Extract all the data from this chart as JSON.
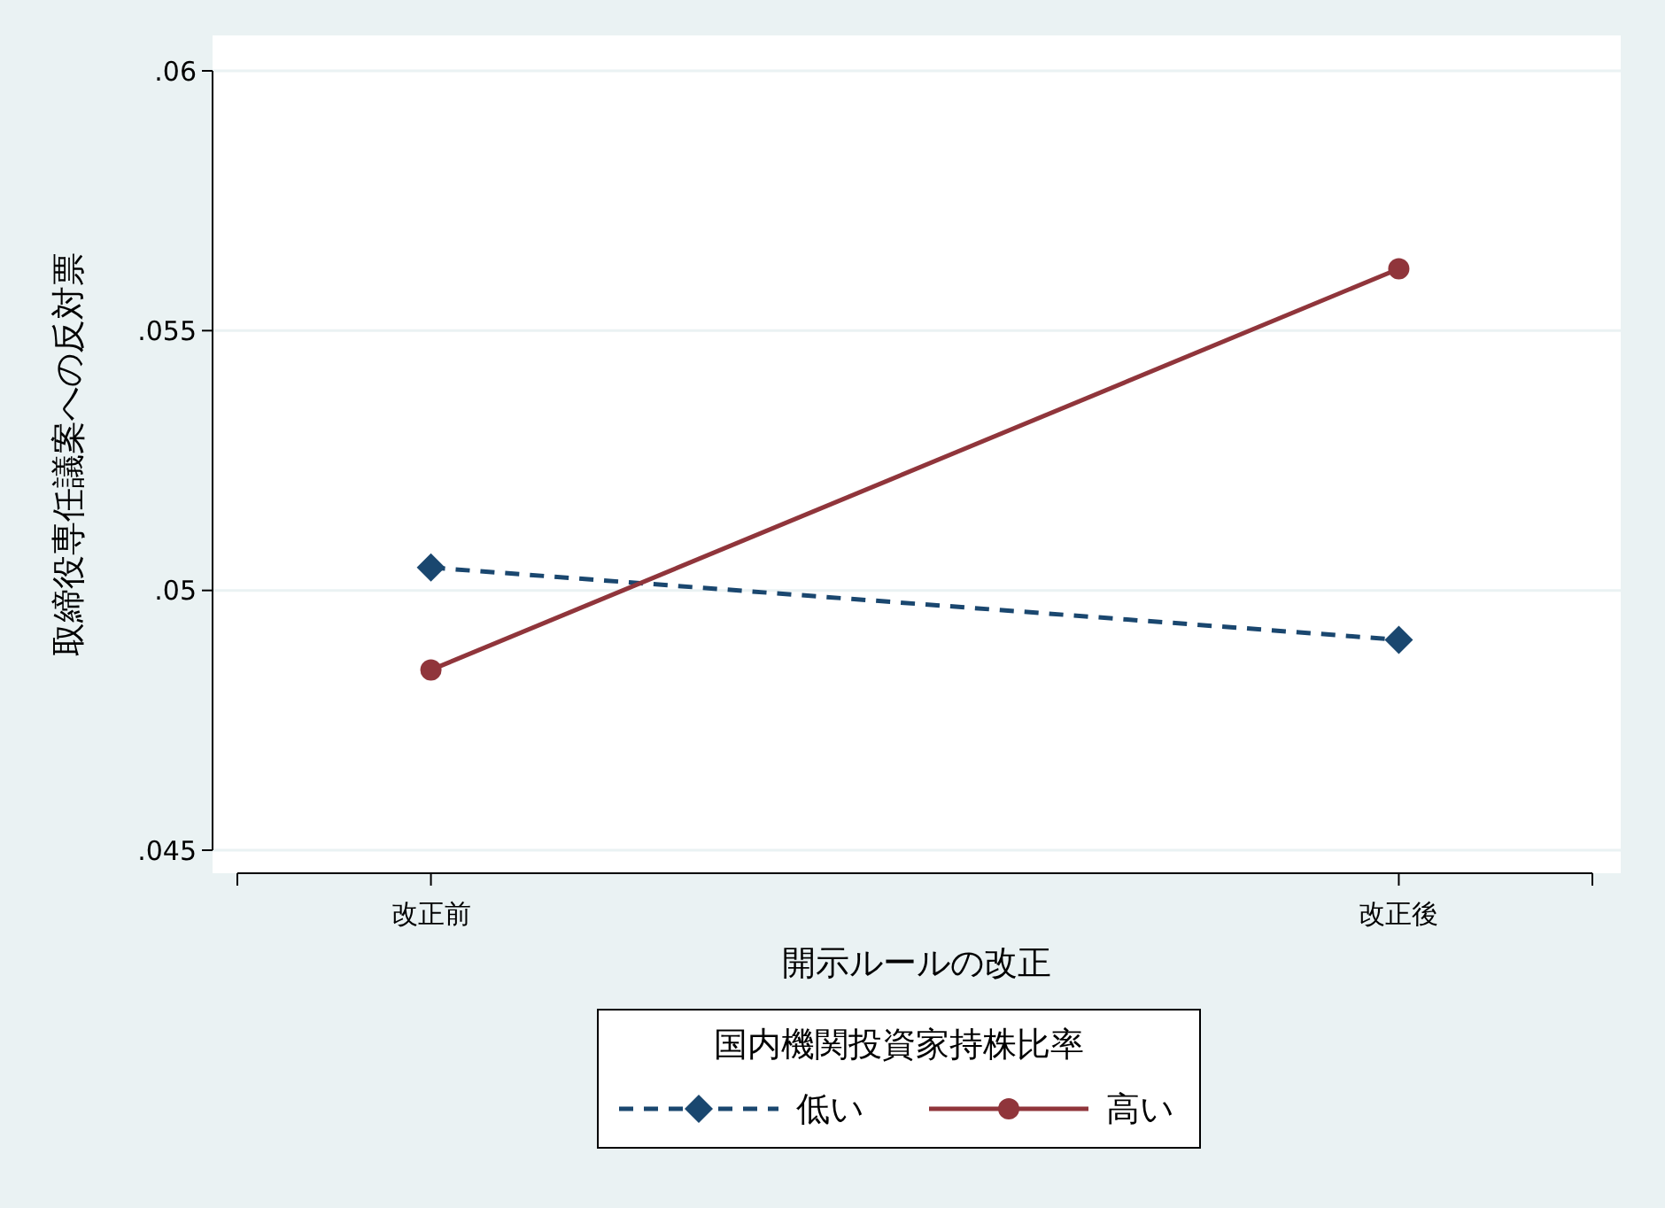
{
  "chart_data": {
    "type": "line",
    "xlabel": "開示ルールの改正",
    "ylabel": "取締役専任議案への反対票",
    "legend_title": "国内機関投資家持株比率",
    "categories": [
      "改正前",
      "改正後"
    ],
    "ylim": [
      0.045,
      0.06
    ],
    "yticks": [
      {
        "value": 0.045,
        "label": ".045"
      },
      {
        "value": 0.05,
        "label": ".05"
      },
      {
        "value": 0.055,
        "label": ".055"
      },
      {
        "value": 0.06,
        "label": ".06"
      }
    ],
    "grid": "y",
    "legend": "bottom",
    "series": [
      {
        "name": "低い",
        "color": "#1a476f",
        "values": [
          0.05044,
          0.04905
        ],
        "marker": "diamond",
        "line_style": "dashed"
      },
      {
        "name": "高い",
        "color": "#90353b",
        "values": [
          0.04847,
          0.05619
        ],
        "marker": "circle",
        "line_style": "solid"
      }
    ]
  }
}
